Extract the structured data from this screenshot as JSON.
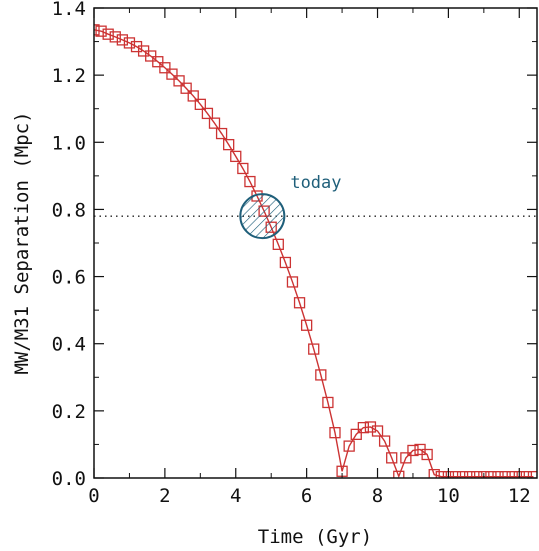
{
  "chart_data": {
    "type": "line",
    "xlabel": "Time (Gyr)",
    "ylabel": "MW/M31 Separation (Mpc)",
    "xlim": [
      0,
      12.5
    ],
    "ylim": [
      0,
      1.4
    ],
    "x_ticks": [
      0,
      2,
      4,
      6,
      8,
      10,
      12
    ],
    "y_ticks": [
      0.0,
      0.2,
      0.4,
      0.6,
      0.8,
      1.0,
      1.2,
      1.4
    ],
    "x_tick_labels": [
      "0",
      "2",
      "4",
      "6",
      "8",
      "10",
      "12"
    ],
    "y_tick_labels": [
      "0.0",
      "0.2",
      "0.4",
      "0.6",
      "0.8",
      "1.0",
      "1.2",
      "1.4"
    ],
    "marker": "open-square",
    "series": [
      {
        "x": [
          0.0,
          0.2,
          0.4,
          0.6,
          0.8,
          1.0,
          1.2,
          1.4,
          1.6,
          1.8,
          2.0,
          2.2,
          2.4,
          2.6,
          2.8,
          3.0,
          3.2,
          3.4,
          3.6,
          3.8,
          4.0,
          4.2,
          4.4,
          4.6,
          4.8,
          5.0,
          5.2,
          5.4,
          5.6,
          5.8,
          6.0,
          6.2,
          6.4,
          6.6,
          6.8,
          7.0,
          7.2,
          7.4,
          7.6,
          7.8,
          8.0,
          8.2,
          8.4,
          8.6,
          8.8,
          9.0,
          9.2,
          9.4,
          9.6,
          9.8,
          10.0,
          10.2,
          10.4,
          10.6,
          10.8,
          11.0,
          11.2,
          11.4,
          11.6,
          11.8,
          12.0,
          12.2,
          12.4
        ],
        "y": [
          1.335,
          1.331,
          1.322,
          1.314,
          1.305,
          1.296,
          1.285,
          1.272,
          1.257,
          1.24,
          1.222,
          1.203,
          1.183,
          1.161,
          1.138,
          1.113,
          1.086,
          1.057,
          1.026,
          0.993,
          0.958,
          0.922,
          0.883,
          0.84,
          0.795,
          0.747,
          0.696,
          0.642,
          0.584,
          0.522,
          0.455,
          0.384,
          0.307,
          0.225,
          0.135,
          0.02,
          0.095,
          0.13,
          0.15,
          0.152,
          0.14,
          0.11,
          0.06,
          0.005,
          0.06,
          0.082,
          0.085,
          0.07,
          0.01,
          0.004,
          0.004,
          0.004,
          0.004,
          0.004,
          0.004,
          0.004,
          0.004,
          0.004,
          0.004,
          0.004,
          0.004,
          0.004,
          0.004
        ],
        "color": "#cc3333"
      }
    ],
    "reference_line": {
      "y": 0.78,
      "style": "dotted",
      "color": "#222222"
    },
    "highlight": {
      "x": 4.75,
      "y": 0.78,
      "label": "today",
      "color": "#1f5f7a"
    }
  }
}
